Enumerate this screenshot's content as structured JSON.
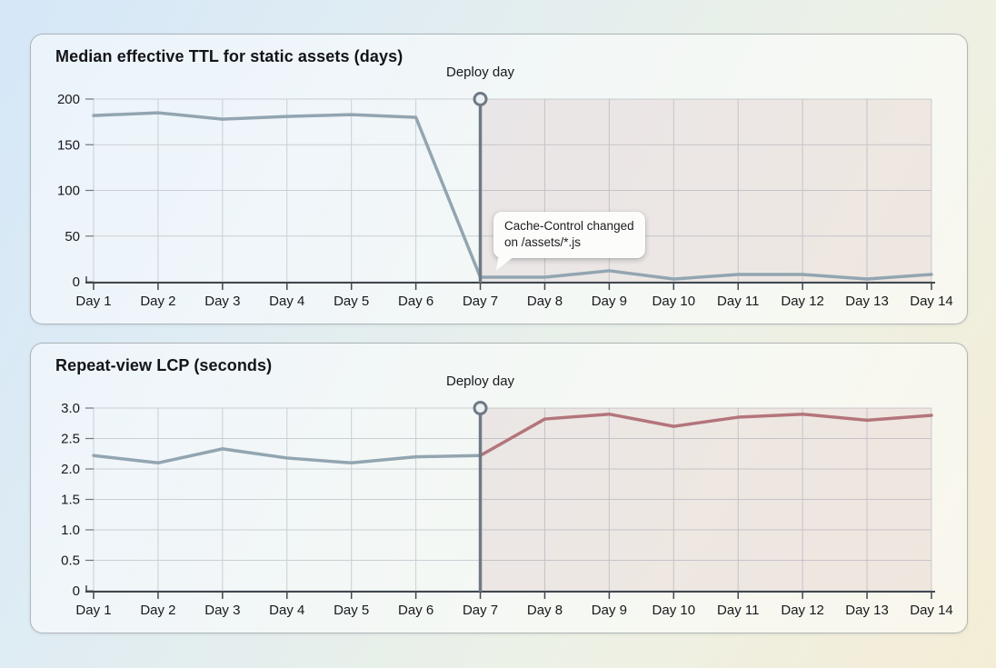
{
  "page": {
    "background_from": "#d5e7f8",
    "background_to": "#f4edd6"
  },
  "colors": {
    "baseline": "#92a5b1",
    "post": "#b3757b",
    "deploy_marker": "#6e7a85",
    "deploy_fill": "#edf0f2",
    "grid": "#c9cfd4",
    "axis": "#40474e",
    "ytick_dash": "#6f777e",
    "shade": "rgba(181,118,127,0.13)",
    "text": "#17191c"
  },
  "chart_data": [
    {
      "type": "line",
      "title": "Median effective TTL for static assets (days)",
      "x": [
        "Day 1",
        "Day 2",
        "Day 3",
        "Day 4",
        "Day 5",
        "Day 6",
        "Day 7",
        "Day 8",
        "Day 9",
        "Day 10",
        "Day 11",
        "Day 12",
        "Day 13",
        "Day 14"
      ],
      "series": [
        {
          "name": "median-effective-ttl-days",
          "values": [
            182,
            185,
            178,
            181,
            183,
            180,
            5,
            5,
            12,
            3,
            8,
            8,
            3,
            8
          ],
          "color_key": "baseline"
        }
      ],
      "ylim": [
        0,
        200
      ],
      "yticks": [
        0,
        50,
        100,
        150,
        200
      ],
      "ytick_labels": [
        "0",
        "50",
        "100",
        "150",
        "200"
      ],
      "grid": true,
      "legend": null,
      "xlabel": "",
      "ylabel": "",
      "deploy_x": "Day 7",
      "deploy_label": "Deploy day",
      "shaded_from_x": "Day 7",
      "shaded_to_end": true,
      "annotation": {
        "line1": "Cache-Control changed",
        "line2": "on /assets/*.js"
      }
    },
    {
      "type": "line",
      "title": "Repeat-view LCP (seconds)",
      "x": [
        "Day 1",
        "Day 2",
        "Day 3",
        "Day 4",
        "Day 5",
        "Day 6",
        "Day 7",
        "Day 8",
        "Day 9",
        "Day 10",
        "Day 11",
        "Day 12",
        "Day 13",
        "Day 14"
      ],
      "series": [
        {
          "name": "repeat-view-lcp-seconds",
          "values": [
            2.22,
            2.1,
            2.33,
            2.18,
            2.1,
            2.2,
            2.22,
            2.82,
            2.9,
            2.7,
            2.85,
            2.9,
            2.8,
            2.88
          ],
          "color_key": "baseline",
          "post_deploy_color_key": "post"
        }
      ],
      "ylim": [
        0,
        3
      ],
      "yticks": [
        0,
        0.5,
        1.0,
        1.5,
        2.0,
        2.5,
        3.0
      ],
      "ytick_labels": [
        "0",
        "0.5",
        "1.0",
        "1.5",
        "2.0",
        "2.5",
        "3.0"
      ],
      "grid": true,
      "legend": null,
      "xlabel": "",
      "ylabel": "",
      "deploy_x": "Day 7",
      "deploy_label": "Deploy day",
      "shaded_from_x": "Day 7",
      "shaded_to_end": true,
      "annotation": null
    }
  ]
}
